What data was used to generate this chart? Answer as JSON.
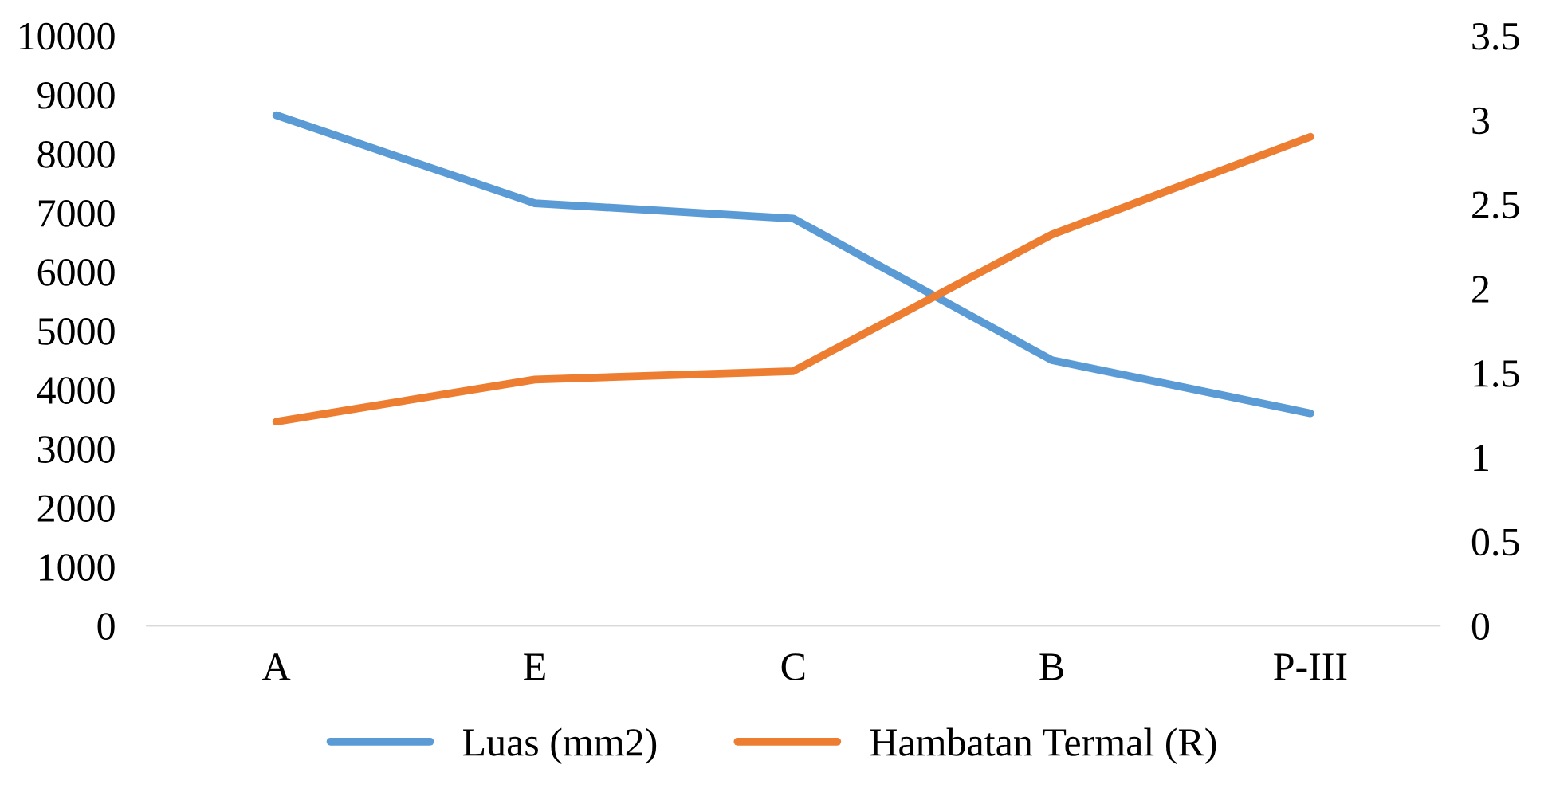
{
  "chart_data": {
    "type": "line",
    "categories": [
      "A",
      "E",
      "C",
      "B",
      "P-III"
    ],
    "series": [
      {
        "name": "Luas (mm2)",
        "color": "#5b9bd5",
        "values": [
          8650,
          7160,
          6900,
          4500,
          3600
        ]
      },
      {
        "name": "Hambatan Termal (R)",
        "color": "#ed7d31",
        "values": [
          1.21,
          1.46,
          1.51,
          2.32,
          2.9
        ],
        "axis": "y2"
      }
    ],
    "ylim": [
      0,
      10000
    ],
    "yticks": [
      0,
      1000,
      2000,
      3000,
      4000,
      5000,
      6000,
      7000,
      8000,
      9000,
      10000
    ],
    "y2lim": [
      0,
      3.5
    ],
    "y2ticks": [
      0,
      0.5,
      1,
      1.5,
      2,
      2.5,
      3,
      3.5
    ],
    "grid": false,
    "legend": "bottom",
    "marker": "none",
    "line_style": "solid"
  }
}
